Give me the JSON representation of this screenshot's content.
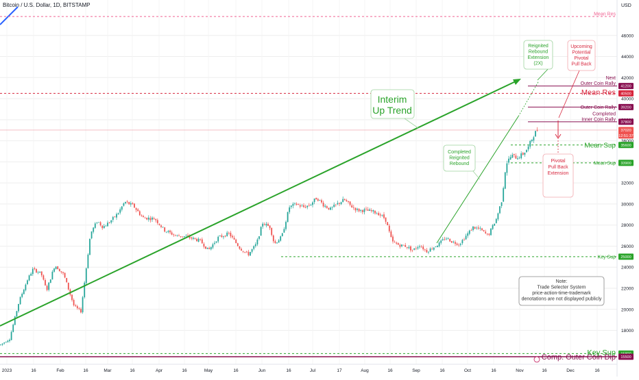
{
  "header": {
    "symbol_title": "Bitcoin / U.S. Dollar, 1D, BITSTAMP",
    "currency": "USD"
  },
  "colors": {
    "up": "#26a69a",
    "down": "#ef5350",
    "green": "#2aa32a",
    "red": "#d7263d",
    "maroon": "#880e4f",
    "grid": "#eeeeee"
  },
  "chart_data": {
    "type": "candlestick",
    "y_range": [
      15500,
      48000
    ],
    "y_ticks": [
      18000,
      20000,
      22000,
      24000,
      26000,
      28000,
      30000,
      32000,
      34000,
      36000,
      38000,
      40000,
      42000,
      44000,
      46000
    ],
    "x_tick_labels": [
      "2023",
      "16",
      "Feb",
      "16",
      "Mar",
      "16",
      "Apr",
      "16",
      "May",
      "16",
      "Jun",
      "16",
      "Jul",
      "17",
      "Aug",
      "16",
      "Sep",
      "16",
      "Oct",
      "16",
      "Nov",
      "16",
      "Dec",
      "16"
    ],
    "price_path": [
      [
        0,
        16600
      ],
      [
        14,
        17200
      ],
      [
        28,
        20800
      ],
      [
        40,
        22800
      ],
      [
        48,
        23800
      ],
      [
        60,
        23400
      ],
      [
        68,
        21800
      ],
      [
        80,
        24200
      ],
      [
        93,
        23300
      ],
      [
        108,
        20300
      ],
      [
        118,
        19800
      ],
      [
        132,
        27200
      ],
      [
        142,
        28400
      ],
      [
        150,
        27800
      ],
      [
        160,
        28300
      ],
      [
        172,
        29100
      ],
      [
        182,
        30200
      ],
      [
        195,
        29800
      ],
      [
        208,
        28700
      ],
      [
        226,
        28600
      ],
      [
        240,
        27500
      ],
      [
        256,
        27000
      ],
      [
        272,
        26900
      ],
      [
        292,
        26500
      ],
      [
        304,
        25600
      ],
      [
        318,
        26800
      ],
      [
        334,
        27200
      ],
      [
        350,
        25800
      ],
      [
        362,
        25200
      ],
      [
        374,
        26200
      ],
      [
        383,
        28200
      ],
      [
        394,
        27800
      ],
      [
        400,
        26200
      ],
      [
        411,
        26900
      ],
      [
        422,
        29700
      ],
      [
        432,
        30000
      ],
      [
        442,
        29700
      ],
      [
        452,
        29900
      ],
      [
        462,
        30600
      ],
      [
        472,
        29900
      ],
      [
        482,
        29500
      ],
      [
        492,
        30000
      ],
      [
        502,
        30400
      ],
      [
        512,
        29800
      ],
      [
        522,
        29400
      ],
      [
        532,
        29400
      ],
      [
        542,
        29300
      ],
      [
        552,
        29100
      ],
      [
        562,
        28600
      ],
      [
        572,
        26400
      ],
      [
        582,
        26100
      ],
      [
        592,
        26000
      ],
      [
        602,
        25600
      ],
      [
        612,
        26100
      ],
      [
        622,
        25500
      ],
      [
        630,
        25800
      ],
      [
        640,
        26200
      ],
      [
        650,
        26800
      ],
      [
        660,
        26400
      ],
      [
        670,
        26200
      ],
      [
        680,
        27000
      ],
      [
        690,
        27800
      ],
      [
        700,
        27600
      ],
      [
        712,
        27000
      ],
      [
        724,
        28600
      ],
      [
        732,
        30400
      ],
      [
        738,
        33800
      ],
      [
        746,
        34600
      ],
      [
        754,
        34400
      ],
      [
        762,
        34700
      ],
      [
        770,
        35300
      ],
      [
        778,
        36500
      ],
      [
        786,
        37300
      ]
    ],
    "levels": [
      {
        "name": "Mean Res",
        "price": 47800,
        "color": "#f06292",
        "dashed": true,
        "label": "Mean Res"
      },
      {
        "name": "Next Outer Coin Rally",
        "price": 41200,
        "color": "#880e4f",
        "tag": "41200",
        "label": "Next\nOuter Coin Rally"
      },
      {
        "name": "Mean Res",
        "price": 40500,
        "color": "#d7263d",
        "dashed": true,
        "tag": "40500",
        "label": "Mean Res"
      },
      {
        "name": "Outer Coin Rally",
        "price": 39200,
        "color": "#880e4f",
        "tag": "39200",
        "label": "Outer Coin Rally"
      },
      {
        "name": "Completed Inner Coin Rally",
        "price": 37800,
        "color": "#880e4f",
        "tag": "37800",
        "label": "Completed\nInner Coin Rally"
      },
      {
        "name": "current",
        "price": 37020,
        "color": "#ef5350",
        "tag": "37020\n12:51:37"
      },
      {
        "name": "Mean Sup",
        "price": 35600,
        "color": "#2aa32a",
        "dashed": true,
        "tag": "35600",
        "label": "Mean Sup"
      },
      {
        "name": "Mean Sup",
        "price": 33900,
        "color": "#2aa32a",
        "dashed": true,
        "tag": "33900",
        "label": "Mean Sup"
      },
      {
        "name": "Key Sup",
        "price": 25000,
        "color": "#2aa32a",
        "dashed": true,
        "tag": "25000",
        "label": "Key Sup"
      },
      {
        "name": "Key Sup",
        "price": 15800,
        "color": "#2aa32a",
        "dashed": true,
        "tag": "15800",
        "label": "Key Sup"
      },
      {
        "name": "Comp. Outer Coin Dip",
        "price": 15500,
        "color": "#880e4f",
        "tag": "15500",
        "label": "Comp. Outer Coin Dip"
      }
    ],
    "annotations": {
      "reignited_extension": "Reignited\nRebound\nExtension\n(2X)",
      "upcoming_pullback": "Upcoming\nPotential\nPivotal\nPull Back",
      "interim_up_trend": "Interim\nUp Trend",
      "completed_reignited": "Completed\nReignited\nRebound",
      "pivotal_pullback_ext": "Pivotal\nPull Back\nExtension",
      "note": "Note:\nTrade Selecter System\nprice-action-time-trademark\ndenotations are not displayed publicly"
    }
  }
}
